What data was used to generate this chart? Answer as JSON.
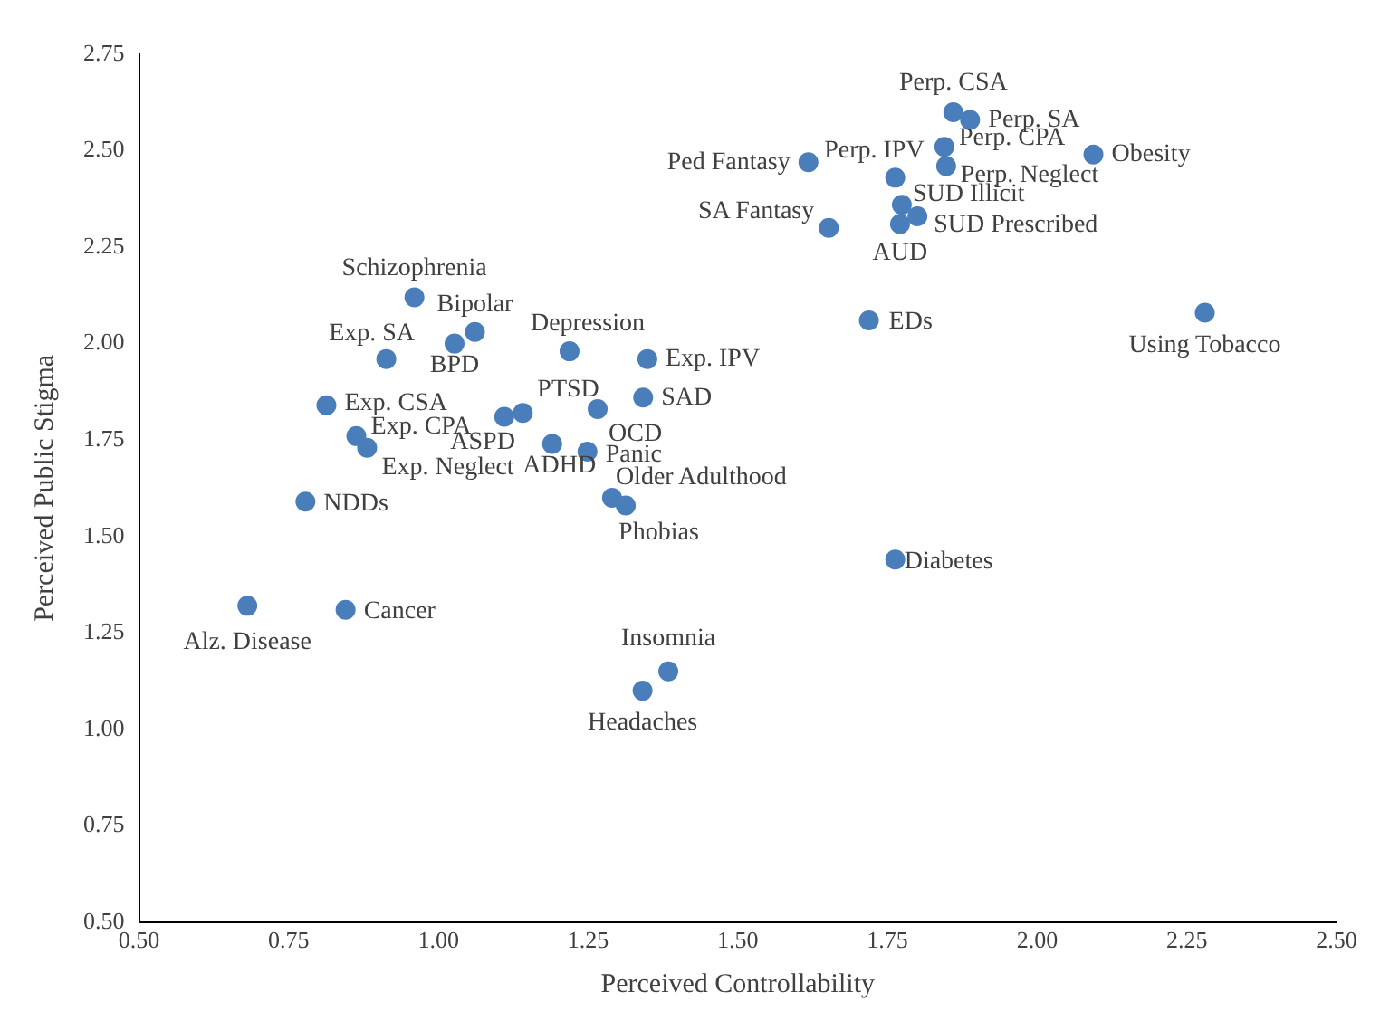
{
  "chart_data": {
    "type": "scatter",
    "xlabel": "Perceived Controllability",
    "ylabel": "Perceived Public Stigma",
    "xlim": [
      0.5,
      2.5
    ],
    "xticks": [
      {
        "value": 0.5,
        "label": "0.50"
      },
      {
        "value": 0.75,
        "label": "0.75"
      },
      {
        "value": 1,
        "label": "1.00"
      },
      {
        "value": 1.25,
        "label": "1.25"
      },
      {
        "value": 1.5,
        "label": "1.50"
      },
      {
        "value": 1.75,
        "label": "1.75"
      },
      {
        "value": 2,
        "label": "2.00"
      },
      {
        "value": 2.25,
        "label": "2.25"
      },
      {
        "value": 2.5,
        "label": "2.50"
      }
    ],
    "ylim": [
      0.5,
      2.75
    ],
    "yticks": [
      {
        "value": 0.5,
        "label": "0.50"
      },
      {
        "value": 0.75,
        "label": "0.75"
      },
      {
        "value": 1,
        "label": "1.00"
      },
      {
        "value": 1.25,
        "label": "1.25"
      },
      {
        "value": 1.5,
        "label": "1.50"
      },
      {
        "value": 1.75,
        "label": "1.75"
      },
      {
        "value": 2,
        "label": "2.00"
      },
      {
        "value": 2.25,
        "label": "2.25"
      },
      {
        "value": 2.5,
        "label": "2.50"
      },
      {
        "value": 2.75,
        "label": "2.75"
      }
    ],
    "grid": false,
    "legend": false,
    "marker": "circle",
    "series": [
      {
        "color": "#4a7ebb",
        "x": [
          0.96,
          1.061,
          1.027,
          0.913,
          1.219,
          1.349,
          0.813,
          1.342,
          1.141,
          1.11,
          1.266,
          0.863,
          0.881,
          1.19,
          1.249,
          1.29,
          1.313,
          0.778,
          0.681,
          0.845,
          1.384,
          1.341,
          1.763,
          1.86,
          1.888,
          1.845,
          1.848,
          2.094,
          1.618,
          1.763,
          1.774,
          1.8,
          1.771,
          1.652,
          1.719,
          2.28
        ],
        "values": [
          2.12,
          2.03,
          2.0,
          1.96,
          1.98,
          1.96,
          1.84,
          1.86,
          1.82,
          1.81,
          1.83,
          1.76,
          1.73,
          1.74,
          1.72,
          1.6,
          1.58,
          1.59,
          1.32,
          1.31,
          1.15,
          1.1,
          1.44,
          2.6,
          2.58,
          2.51,
          2.46,
          2.49,
          2.47,
          2.43,
          2.36,
          2.33,
          2.31,
          2.3,
          2.06,
          2.08
        ]
      }
    ],
    "annotations": [
      {
        "text": "Schizophrenia",
        "x": 0.96,
        "y": 2.12
      },
      {
        "text": "Bipolar",
        "x": 1.061,
        "y": 2.03
      },
      {
        "text": "BPD",
        "x": 1.027,
        "y": 2.0
      },
      {
        "text": "Exp. SA",
        "x": 0.913,
        "y": 1.96
      },
      {
        "text": "Depression",
        "x": 1.219,
        "y": 1.98
      },
      {
        "text": "Exp. IPV",
        "x": 1.349,
        "y": 1.96
      },
      {
        "text": "Exp. CSA",
        "x": 0.813,
        "y": 1.84
      },
      {
        "text": "SAD",
        "x": 1.342,
        "y": 1.86
      },
      {
        "text": "PTSD",
        "x": 1.141,
        "y": 1.82
      },
      {
        "text": "ASPD",
        "x": 1.11,
        "y": 1.81
      },
      {
        "text": "OCD",
        "x": 1.266,
        "y": 1.83
      },
      {
        "text": "Exp. CPA",
        "x": 0.863,
        "y": 1.76
      },
      {
        "text": "Exp. Neglect",
        "x": 0.881,
        "y": 1.73
      },
      {
        "text": "ADHD",
        "x": 1.19,
        "y": 1.74
      },
      {
        "text": "Panic",
        "x": 1.249,
        "y": 1.72
      },
      {
        "text": "Older Adulthood",
        "x": 1.29,
        "y": 1.6
      },
      {
        "text": "Phobias",
        "x": 1.313,
        "y": 1.58
      },
      {
        "text": "NDDs",
        "x": 0.778,
        "y": 1.59
      },
      {
        "text": "Alz. Disease",
        "x": 0.681,
        "y": 1.32
      },
      {
        "text": "Cancer",
        "x": 0.845,
        "y": 1.31
      },
      {
        "text": "Insomnia",
        "x": 1.384,
        "y": 1.15
      },
      {
        "text": "Headaches",
        "x": 1.341,
        "y": 1.1
      },
      {
        "text": "Diabetes",
        "x": 1.763,
        "y": 1.44
      },
      {
        "text": "Perp. CSA",
        "x": 1.86,
        "y": 2.6
      },
      {
        "text": "Perp. SA",
        "x": 1.888,
        "y": 2.58
      },
      {
        "text": "Perp. CPA",
        "x": 1.845,
        "y": 2.51
      },
      {
        "text": "Perp. Neglect",
        "x": 1.848,
        "y": 2.46
      },
      {
        "text": "Obesity",
        "x": 2.094,
        "y": 2.49
      },
      {
        "text": "Ped Fantasy",
        "x": 1.618,
        "y": 2.47
      },
      {
        "text": "Perp. IPV",
        "x": 1.763,
        "y": 2.43
      },
      {
        "text": "SUD Illicit",
        "x": 1.774,
        "y": 2.36
      },
      {
        "text": "SUD Prescribed",
        "x": 1.8,
        "y": 2.33
      },
      {
        "text": "AUD",
        "x": 1.771,
        "y": 2.31
      },
      {
        "text": "SA Fantasy",
        "x": 1.652,
        "y": 2.3
      },
      {
        "text": "EDs",
        "x": 1.719,
        "y": 2.06
      },
      {
        "text": "Using Tobacco",
        "x": 2.28,
        "y": 2.08
      }
    ]
  }
}
